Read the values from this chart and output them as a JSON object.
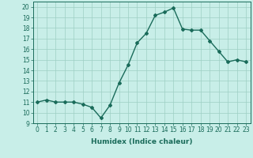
{
  "x": [
    0,
    1,
    2,
    3,
    4,
    5,
    6,
    7,
    8,
    9,
    10,
    11,
    12,
    13,
    14,
    15,
    16,
    17,
    18,
    19,
    20,
    21,
    22,
    23
  ],
  "y": [
    11,
    11.2,
    11,
    11,
    11,
    10.8,
    10.5,
    9.5,
    10.7,
    12.8,
    14.5,
    16.6,
    17.5,
    19.2,
    19.5,
    19.9,
    17.9,
    17.8,
    17.8,
    16.8,
    15.8,
    14.8,
    15.0,
    14.8
  ],
  "line_color": "#1a6b5a",
  "marker": "D",
  "marker_size": 2,
  "bg_color": "#c8eee8",
  "grid_color": "#9ecfc4",
  "xlabel": "Humidex (Indice chaleur)",
  "xlim": [
    -0.5,
    23.5
  ],
  "ylim": [
    9,
    20.5
  ],
  "yticks": [
    9,
    10,
    11,
    12,
    13,
    14,
    15,
    16,
    17,
    18,
    19,
    20
  ],
  "xticks": [
    0,
    1,
    2,
    3,
    4,
    5,
    6,
    7,
    8,
    9,
    10,
    11,
    12,
    13,
    14,
    15,
    16,
    17,
    18,
    19,
    20,
    21,
    22,
    23
  ],
  "xlabel_fontsize": 6.5,
  "tick_fontsize": 5.5,
  "line_width": 1.0
}
